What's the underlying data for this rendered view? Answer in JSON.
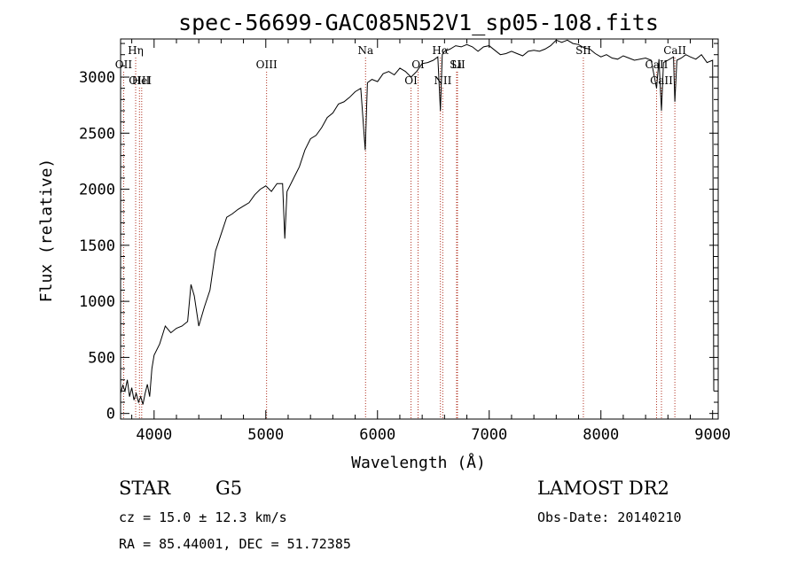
{
  "chart_data": {
    "type": "line",
    "title": "spec-56699-GAC085N52V1_sp05-108.fits",
    "xlabel": "Wavelength (Å)",
    "ylabel": "Flux (relative)",
    "xlim": [
      3700,
      9050
    ],
    "ylim": [
      -50,
      3340
    ],
    "xticks": [
      4000,
      5000,
      6000,
      7000,
      8000,
      9000
    ],
    "yticks": [
      0,
      500,
      1000,
      1500,
      2000,
      2500,
      3000
    ],
    "series": [
      {
        "name": "spectrum",
        "points": [
          [
            3700,
            180
          ],
          [
            3720,
            250
          ],
          [
            3740,
            200
          ],
          [
            3760,
            300
          ],
          [
            3780,
            150
          ],
          [
            3800,
            230
          ],
          [
            3820,
            120
          ],
          [
            3840,
            180
          ],
          [
            3860,
            100
          ],
          [
            3880,
            150
          ],
          [
            3900,
            80
          ],
          [
            3920,
            180
          ],
          [
            3940,
            260
          ],
          [
            3960,
            150
          ],
          [
            3980,
            400
          ],
          [
            4000,
            520
          ],
          [
            4050,
            620
          ],
          [
            4100,
            780
          ],
          [
            4150,
            720
          ],
          [
            4200,
            760
          ],
          [
            4250,
            780
          ],
          [
            4300,
            820
          ],
          [
            4330,
            1150
          ],
          [
            4360,
            1050
          ],
          [
            4400,
            780
          ],
          [
            4450,
            950
          ],
          [
            4500,
            1100
          ],
          [
            4550,
            1450
          ],
          [
            4600,
            1600
          ],
          [
            4650,
            1750
          ],
          [
            4700,
            1780
          ],
          [
            4750,
            1820
          ],
          [
            4800,
            1850
          ],
          [
            4850,
            1880
          ],
          [
            4900,
            1950
          ],
          [
            4950,
            2000
          ],
          [
            5000,
            2030
          ],
          [
            5050,
            1980
          ],
          [
            5100,
            2050
          ],
          [
            5150,
            2050
          ],
          [
            5170,
            1560
          ],
          [
            5190,
            1980
          ],
          [
            5250,
            2100
          ],
          [
            5300,
            2200
          ],
          [
            5350,
            2350
          ],
          [
            5400,
            2450
          ],
          [
            5450,
            2480
          ],
          [
            5500,
            2550
          ],
          [
            5550,
            2640
          ],
          [
            5600,
            2680
          ],
          [
            5650,
            2760
          ],
          [
            5700,
            2780
          ],
          [
            5750,
            2820
          ],
          [
            5800,
            2870
          ],
          [
            5850,
            2900
          ],
          [
            5890,
            2350
          ],
          [
            5910,
            2950
          ],
          [
            5950,
            2980
          ],
          [
            6000,
            2960
          ],
          [
            6050,
            3030
          ],
          [
            6100,
            3050
          ],
          [
            6150,
            3020
          ],
          [
            6200,
            3080
          ],
          [
            6250,
            3050
          ],
          [
            6300,
            3000
          ],
          [
            6350,
            3050
          ],
          [
            6400,
            3120
          ],
          [
            6450,
            3130
          ],
          [
            6500,
            3150
          ],
          [
            6540,
            3180
          ],
          [
            6563,
            2700
          ],
          [
            6580,
            3200
          ],
          [
            6600,
            3230
          ],
          [
            6650,
            3250
          ],
          [
            6700,
            3280
          ],
          [
            6750,
            3270
          ],
          [
            6800,
            3290
          ],
          [
            6850,
            3270
          ],
          [
            6900,
            3230
          ],
          [
            6950,
            3270
          ],
          [
            7000,
            3280
          ],
          [
            7050,
            3240
          ],
          [
            7100,
            3200
          ],
          [
            7150,
            3210
          ],
          [
            7200,
            3230
          ],
          [
            7250,
            3210
          ],
          [
            7300,
            3190
          ],
          [
            7350,
            3230
          ],
          [
            7400,
            3240
          ],
          [
            7450,
            3230
          ],
          [
            7500,
            3250
          ],
          [
            7550,
            3280
          ],
          [
            7600,
            3330
          ],
          [
            7650,
            3310
          ],
          [
            7700,
            3330
          ],
          [
            7750,
            3300
          ],
          [
            7800,
            3290
          ],
          [
            7850,
            3260
          ],
          [
            7900,
            3250
          ],
          [
            7950,
            3210
          ],
          [
            8000,
            3180
          ],
          [
            8050,
            3200
          ],
          [
            8100,
            3170
          ],
          [
            8150,
            3160
          ],
          [
            8200,
            3190
          ],
          [
            8250,
            3170
          ],
          [
            8300,
            3150
          ],
          [
            8350,
            3160
          ],
          [
            8400,
            3170
          ],
          [
            8450,
            3150
          ],
          [
            8498,
            2900
          ],
          [
            8520,
            3160
          ],
          [
            8542,
            2700
          ],
          [
            8560,
            3130
          ],
          [
            8600,
            3150
          ],
          [
            8650,
            3180
          ],
          [
            8662,
            2780
          ],
          [
            8680,
            3150
          ],
          [
            8720,
            3170
          ],
          [
            8760,
            3200
          ],
          [
            8800,
            3180
          ],
          [
            8850,
            3160
          ],
          [
            8900,
            3200
          ],
          [
            8950,
            3130
          ],
          [
            9000,
            3150
          ],
          [
            9010,
            200
          ]
        ]
      }
    ],
    "lines": [
      {
        "label": "Hη",
        "wave": 3835,
        "row": 1
      },
      {
        "label": "OII",
        "wave": 3727,
        "row": 2
      },
      {
        "label": "OIII",
        "wave": 3869,
        "row": 3
      },
      {
        "label": "HeI",
        "wave": 3889,
        "row": 3
      },
      {
        "label": "OIII",
        "wave": 5007,
        "row": 2
      },
      {
        "label": "Na",
        "wave": 5893,
        "row": 1
      },
      {
        "label": "OI",
        "wave": 6300,
        "row": 3
      },
      {
        "label": "OI",
        "wave": 6363,
        "row": 2
      },
      {
        "label": "Hα",
        "wave": 6563,
        "row": 1
      },
      {
        "label": "NII",
        "wave": 6584,
        "row": 3
      },
      {
        "label": "SII",
        "wave": 6716,
        "row": 2
      },
      {
        "label": "Li",
        "wave": 6708,
        "row": 2
      },
      {
        "label": "SII",
        "wave": 7843,
        "row": 1
      },
      {
        "label": "CaII",
        "wave": 8498,
        "row": 2
      },
      {
        "label": "CaII",
        "wave": 8542,
        "row": 3
      },
      {
        "label": "CaII",
        "wave": 8662,
        "row": 1
      }
    ]
  },
  "info": {
    "class_label": "STAR",
    "subclass": "G5",
    "survey": "LAMOST DR2",
    "cz": "cz = 15.0 ± 12.3 km/s",
    "obs_date": "Obs-Date: 20140210",
    "coords": "RA =  85.44001, DEC =  51.72385"
  },
  "colors": {
    "spectrum": "#000000",
    "marker": "#b03020"
  }
}
